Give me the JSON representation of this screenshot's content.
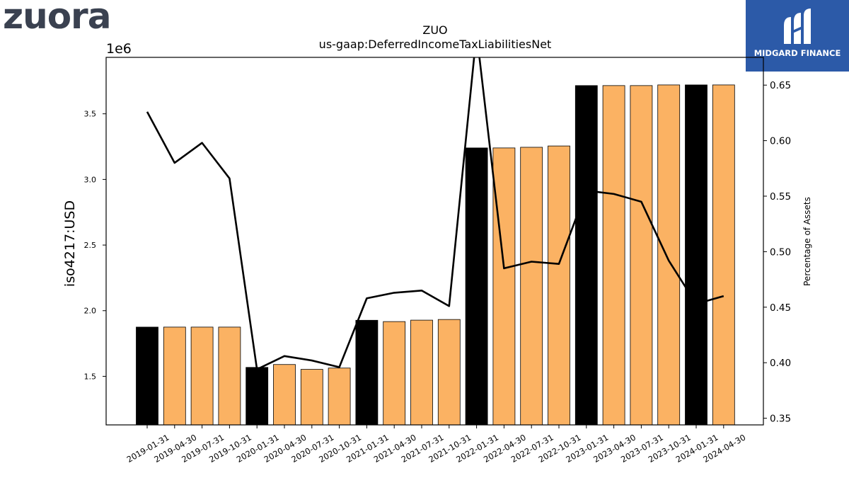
{
  "logos": {
    "left_text": "zuora",
    "right_text": "MIDGARD FINANCE"
  },
  "colors": {
    "bar_black": "#000000",
    "bar_orange": "#fbb263",
    "line": "#000000",
    "brand_blue": "#2c5aa8",
    "zuora_gray": "#3a4150"
  },
  "chart_data": {
    "type": "bar",
    "title": "ZUO",
    "subtitle": "us-gaap:DeferredIncomeTaxLiabilitiesNet",
    "ylabel": "iso4217:USD",
    "y2label": "Percentage of Assets",
    "y_offset_label": "1e6",
    "ylim": [
      1.13,
      3.93
    ],
    "y2lim": [
      0.344,
      0.675
    ],
    "yticks": [
      1.5,
      2.0,
      2.5,
      3.0,
      3.5
    ],
    "ytick_labels": [
      "1.5",
      "2.0",
      "2.5",
      "3.0",
      "3.5"
    ],
    "y2ticks": [
      0.35,
      0.4,
      0.45,
      0.5,
      0.55,
      0.6,
      0.65
    ],
    "y2tick_labels": [
      "0.35",
      "0.40",
      "0.45",
      "0.50",
      "0.55",
      "0.60",
      "0.65"
    ],
    "categories": [
      "2019-01-31",
      "2019-04-30",
      "2019-07-31",
      "2019-10-31",
      "2020-01-31",
      "2020-04-30",
      "2020-07-31",
      "2020-10-31",
      "2021-01-31",
      "2021-04-30",
      "2021-07-31",
      "2021-10-31",
      "2022-01-31",
      "2022-04-30",
      "2022-07-31",
      "2022-10-31",
      "2023-01-31",
      "2023-04-30",
      "2023-07-31",
      "2023-10-31",
      "2024-01-31",
      "2024-04-30"
    ],
    "series": [
      {
        "type": "bar",
        "values": [
          1.875,
          1.875,
          1.875,
          1.875,
          1.568,
          1.59,
          1.553,
          1.563,
          1.927,
          1.917,
          1.928,
          1.933,
          3.24,
          3.24,
          3.245,
          3.255,
          3.715,
          3.715,
          3.715,
          3.72,
          3.72,
          3.72
        ],
        "highlight": [
          true,
          false,
          false,
          false,
          true,
          false,
          false,
          false,
          true,
          false,
          false,
          false,
          true,
          false,
          false,
          false,
          true,
          false,
          false,
          false,
          true,
          false
        ]
      },
      {
        "type": "line",
        "axis": "right",
        "values": [
          0.626,
          0.58,
          0.598,
          0.566,
          0.394,
          0.406,
          0.402,
          0.396,
          0.458,
          0.463,
          0.465,
          0.451,
          0.697,
          0.485,
          0.491,
          0.489,
          0.555,
          0.552,
          0.545,
          0.492,
          0.453,
          0.46
        ]
      }
    ]
  }
}
